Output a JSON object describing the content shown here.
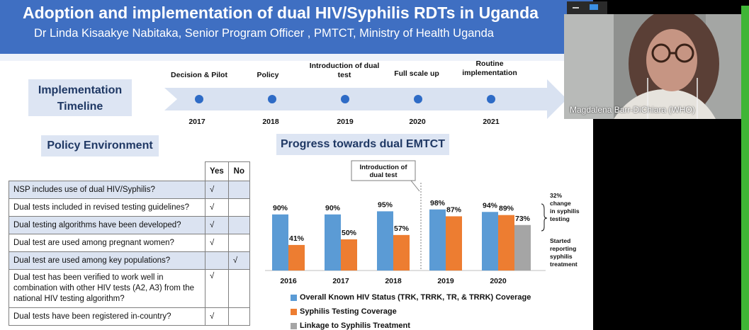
{
  "slide": {
    "title": "Adoption and implementation of dual HIV/Syphilis RDTs in Uganda",
    "subtitle": "Dr Linda Kisaakye Nabitaka, Senior Program Officer , PMTCT, Ministry of Health Uganda"
  },
  "timeline": {
    "label": "Implementation Timeline",
    "milestones": [
      {
        "label": "Decision & Pilot",
        "year": "2017"
      },
      {
        "label": "Policy",
        "year": "2018"
      },
      {
        "label": "Introduction of dual test",
        "year": "2019"
      },
      {
        "label": "Full scale up",
        "year": "2020"
      },
      {
        "label": "Routine implementation",
        "year": "2021"
      }
    ]
  },
  "policy": {
    "heading": "Policy Environment",
    "col_yes": "Yes",
    "col_no": "No",
    "rows": [
      {
        "q": "NSP includes use of dual HIV/Syphilis?",
        "yes": "√",
        "no": ""
      },
      {
        "q": "Dual tests included in revised testing guidelines?",
        "yes": "√",
        "no": ""
      },
      {
        "q": "Dual testing algorithms have been developed?",
        "yes": "√",
        "no": ""
      },
      {
        "q": "Dual test are used among pregnant women?",
        "yes": "√",
        "no": ""
      },
      {
        "q": "Dual test are used among key populations?",
        "yes": "",
        "no": "√"
      },
      {
        "q": "Dual test has been verified to work well in combination with other HIV tests (A2, A3) from the national HIV testing algorithm?",
        "yes": "√",
        "no": ""
      },
      {
        "q": "Dual tests have been registered in-country?",
        "yes": "√",
        "no": ""
      }
    ]
  },
  "progress": {
    "heading": "Progress towards dual EMTCT",
    "callout": "Introduction of dual test",
    "annot_change": "32% change in syphilis testing",
    "annot_treatment": "Started reporting syphilis treatment"
  },
  "chart_data": {
    "type": "bar",
    "title": "Progress towards dual EMTCT",
    "categories": [
      "2016",
      "2017",
      "2018",
      "2019",
      "2020"
    ],
    "series": [
      {
        "name": "Overall Known HIV Status (TRK, TRRK, TR, & TRRK) Coverage",
        "color": "#5b9bd5",
        "values": [
          90,
          90,
          95,
          98,
          94
        ]
      },
      {
        "name": "Syphilis Testing Coverage",
        "color": "#ed7d31",
        "values": [
          41,
          50,
          57,
          87,
          89
        ]
      },
      {
        "name": "Linkage to Syphilis Treatment",
        "color": "#a5a5a5",
        "values": [
          null,
          null,
          null,
          null,
          73
        ]
      }
    ],
    "ylim": [
      0,
      100
    ],
    "legend": "bottom"
  },
  "video": {
    "participant_name": "Magdalena Barr-DiChiara (WHO)"
  },
  "colors": {
    "header": "#3f6fc2",
    "box": "#dde5f3",
    "arrow": "#d9e2f1",
    "dot": "#2e6bc6",
    "share_green": "#3fb536"
  }
}
